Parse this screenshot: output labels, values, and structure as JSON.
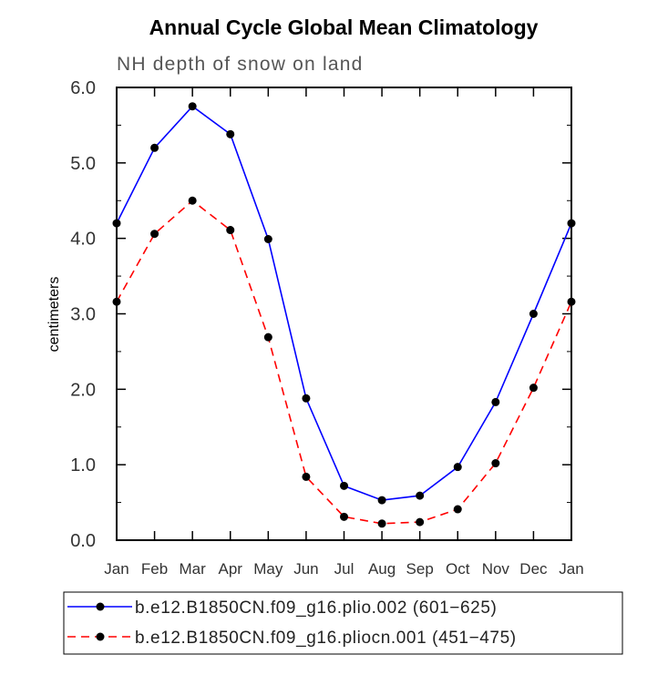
{
  "chart_data": {
    "type": "line",
    "title": "Annual Cycle Global Mean Climatology",
    "subtitle": "NH depth of snow on land",
    "xlabel": "",
    "ylabel": "centimeters",
    "categories": [
      "Jan",
      "Feb",
      "Mar",
      "Apr",
      "May",
      "Jun",
      "Jul",
      "Aug",
      "Sep",
      "Oct",
      "Nov",
      "Dec",
      "Jan"
    ],
    "ylim": [
      0,
      6
    ],
    "yticks": [
      "0.0",
      "1.0",
      "2.0",
      "3.0",
      "4.0",
      "5.0",
      "6.0"
    ],
    "grid": false,
    "legend_position": "bottom",
    "series": [
      {
        "name": "b.e12.B1850CN.f09_g16.plio.002 (601−625)",
        "color": "#0000ff",
        "dash": "solid",
        "values": [
          4.2,
          5.2,
          5.75,
          5.38,
          3.99,
          1.88,
          0.72,
          0.53,
          0.59,
          0.97,
          1.83,
          3.0,
          4.2
        ]
      },
      {
        "name": "b.e12.B1850CN.f09_g16.pliocn.001 (451−475)",
        "color": "#ff0000",
        "dash": "dashed",
        "values": [
          3.16,
          4.06,
          4.5,
          4.11,
          2.69,
          0.84,
          0.31,
          0.22,
          0.24,
          0.41,
          1.02,
          2.02,
          3.16
        ]
      }
    ]
  }
}
